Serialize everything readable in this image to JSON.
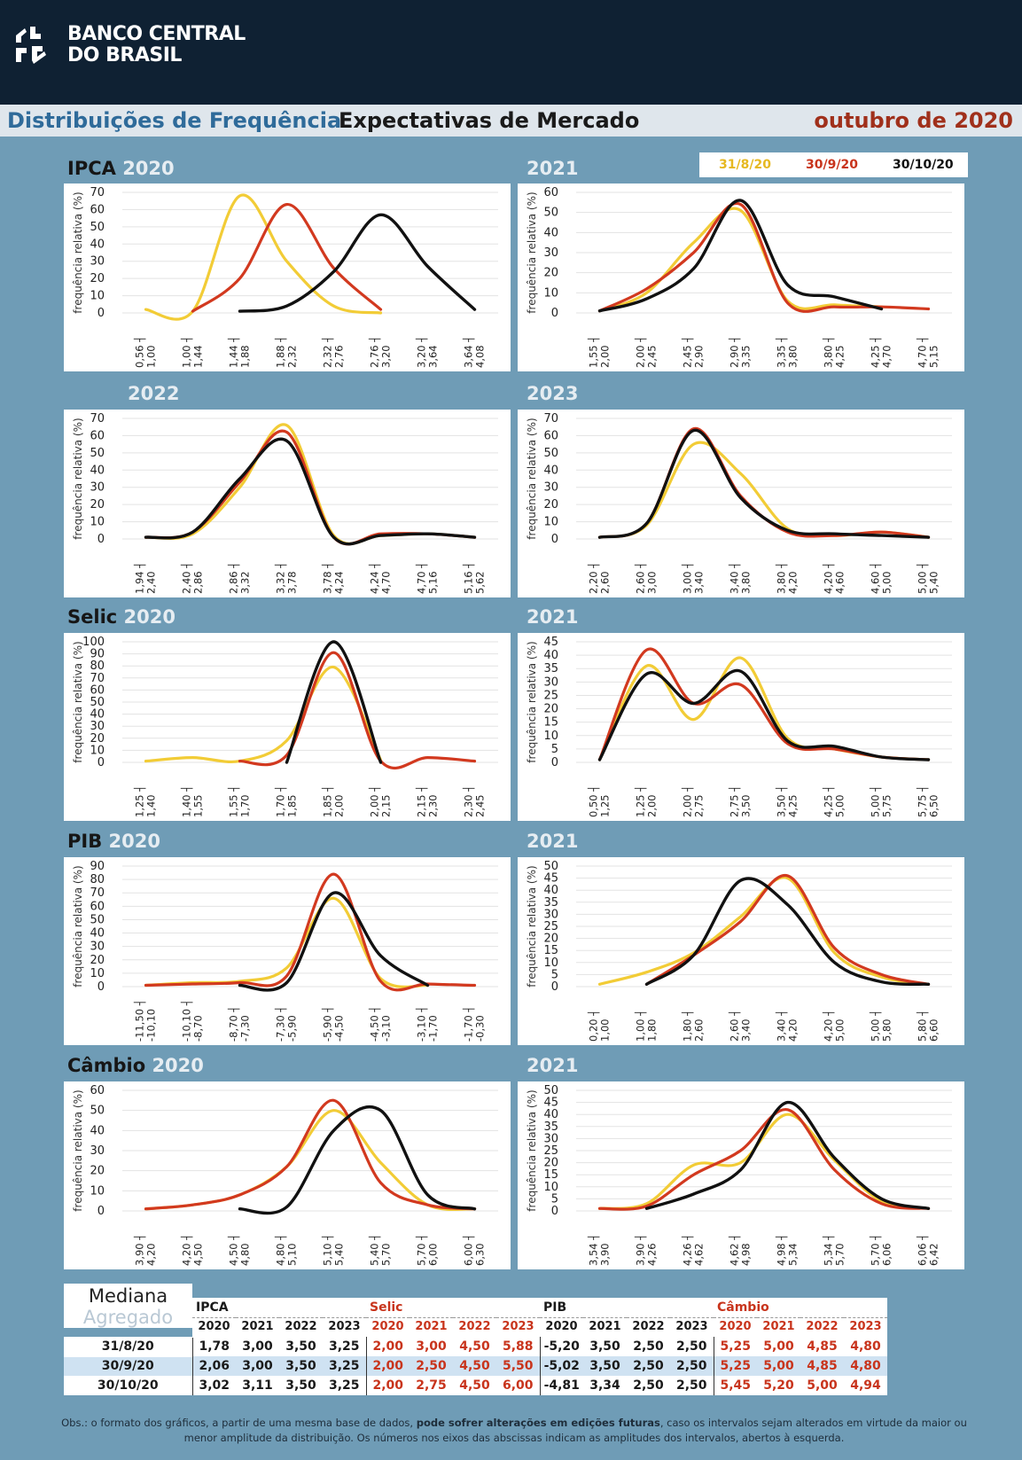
{
  "header": {
    "bank_line1": "BANCO CENTRAL",
    "bank_line2": "DO BRASIL",
    "logo_icon": "bcb-logo-icon"
  },
  "titlebar": {
    "part1": "Distribuições de Frequência",
    "part2": "Expectativas de Mercado",
    "date": "outubro de 2020"
  },
  "colors": {
    "s1": "#f2cc36",
    "s2": "#d2391f",
    "s3": "#111111",
    "red_text": "#c8341c",
    "grid": "#e3e3e3"
  },
  "legend": [
    {
      "label": "31/8/20",
      "color": "#e6b820"
    },
    {
      "label": "30/9/20",
      "color": "#c8341c"
    },
    {
      "label": "30/10/20",
      "color": "#111111"
    }
  ],
  "sections": [
    {
      "name": "IPCA",
      "left_year": "2020",
      "right_year": "2021"
    },
    {
      "name": "",
      "left_year": "2022",
      "right_year": "2023"
    },
    {
      "name": "Selic",
      "left_year": "2020",
      "right_year": "2021"
    },
    {
      "name": "PIB",
      "left_year": "2020",
      "right_year": "2021"
    },
    {
      "name": "Câmbio",
      "left_year": "2020",
      "right_year": "2021"
    }
  ],
  "ylabel": "frequência relativa (%)",
  "chart_data": [
    {
      "type": "line",
      "indicator": "IPCA",
      "year": "2020",
      "ylim": [
        0,
        70
      ],
      "yticks": [
        0,
        10,
        20,
        30,
        40,
        50,
        60,
        70
      ],
      "x": [
        "0,56 ┤ 1,00",
        "1,00 ┤ 1,44",
        "1,44 ┤ 1,88",
        "1,88 ┤ 2,32",
        "2,32 ┤ 2,76",
        "2,76 ┤ 3,20",
        "3,20 ┤ 3,64",
        "3,64 ┤ 4,08"
      ],
      "series": [
        {
          "name": "31/8/20",
          "values": [
            2,
            1,
            68,
            30,
            4,
            0,
            null,
            null
          ]
        },
        {
          "name": "30/9/20",
          "values": [
            null,
            1,
            20,
            63,
            26,
            2,
            null,
            null
          ]
        },
        {
          "name": "30/10/20",
          "values": [
            null,
            null,
            1,
            4,
            24,
            57,
            27,
            2
          ]
        }
      ]
    },
    {
      "type": "line",
      "indicator": "IPCA",
      "year": "2021",
      "ylim": [
        0,
        60
      ],
      "yticks": [
        0,
        10,
        20,
        30,
        40,
        50,
        60
      ],
      "x": [
        "1,55 ┤ 2,00",
        "2,00 ┤ 2,45",
        "2,45 ┤ 2,90",
        "2,90 ┤ 3,35",
        "3,35 ┤ 3,80",
        "3,80 ┤ 4,25",
        "4,25 ┤ 4,70",
        "4,70 ┤ 5,15"
      ],
      "series": [
        {
          "name": "31/8/20",
          "values": [
            1,
            10,
            35,
            51,
            6,
            4,
            3,
            null
          ]
        },
        {
          "name": "30/9/20",
          "values": [
            1,
            12,
            30,
            54,
            5,
            3,
            3,
            2
          ]
        },
        {
          "name": "30/10/20",
          "values": [
            1,
            7,
            22,
            56,
            14,
            8,
            2,
            null
          ]
        }
      ]
    },
    {
      "type": "line",
      "indicator": "IPCA",
      "year": "2022",
      "ylim": [
        0,
        70
      ],
      "yticks": [
        0,
        10,
        20,
        30,
        40,
        50,
        60,
        70
      ],
      "x": [
        "1,94 ┤ 2,40",
        "2,40 ┤ 2,86",
        "2,86 ┤ 3,32",
        "3,32 ┤ 3,78",
        "3,78 ┤ 4,24",
        "4,24 ┤ 4,70",
        "4,70 ┤ 5,16",
        "5,16 ┤ 5,62"
      ],
      "series": [
        {
          "name": "31/8/20",
          "values": [
            1,
            3,
            30,
            66,
            2,
            2,
            3,
            1
          ]
        },
        {
          "name": "30/9/20",
          "values": [
            1,
            4,
            33,
            62,
            1,
            3,
            3,
            1
          ]
        },
        {
          "name": "30/10/20",
          "values": [
            1,
            4,
            35,
            57,
            1,
            2,
            3,
            1
          ]
        }
      ]
    },
    {
      "type": "line",
      "indicator": "IPCA",
      "year": "2023",
      "ylim": [
        0,
        70
      ],
      "yticks": [
        0,
        10,
        20,
        30,
        40,
        50,
        60,
        70
      ],
      "x": [
        "2,20 ┤ 2,60",
        "2,60 ┤ 3,00",
        "3,00 ┤ 3,40",
        "3,40 ┤ 3,80",
        "3,80 ┤ 4,20",
        "4,20 ┤ 4,60",
        "4,60 ┤ 5,00",
        "5,00 ┤ 5,40"
      ],
      "series": [
        {
          "name": "31/8/20",
          "values": [
            1,
            8,
            55,
            38,
            6,
            2,
            4,
            1
          ]
        },
        {
          "name": "30/9/20",
          "values": [
            1,
            9,
            64,
            25,
            4,
            2,
            4,
            1
          ]
        },
        {
          "name": "30/10/20",
          "values": [
            1,
            9,
            63,
            24,
            5,
            3,
            2,
            1
          ]
        }
      ]
    },
    {
      "type": "line",
      "indicator": "Selic",
      "year": "2020",
      "ylim": [
        0,
        100
      ],
      "yticks": [
        0,
        10,
        20,
        30,
        40,
        50,
        60,
        70,
        80,
        90,
        100
      ],
      "x": [
        "1,25 ┤ 1,40",
        "1,40 ┤ 1,55",
        "1,55 ┤ 1,70",
        "1,70 ┤ 1,85",
        "1,85 ┤ 2,00",
        "2,00 ┤ 2,15",
        "2,15 ┤ 2,30",
        "2,30 ┤ 2,45"
      ],
      "series": [
        {
          "name": "31/8/20",
          "values": [
            1,
            4,
            1,
            18,
            79,
            2,
            null,
            null
          ]
        },
        {
          "name": "30/9/20",
          "values": [
            null,
            null,
            1,
            6,
            91,
            1,
            4,
            1
          ]
        },
        {
          "name": "30/10/20",
          "values": [
            null,
            null,
            null,
            0,
            100,
            0,
            null,
            null
          ]
        }
      ]
    },
    {
      "type": "line",
      "indicator": "Selic",
      "year": "2021",
      "ylim": [
        0,
        45
      ],
      "yticks": [
        0,
        5,
        10,
        15,
        20,
        25,
        30,
        35,
        40,
        45
      ],
      "x": [
        "0,50 ┤ 1,25",
        "1,25 ┤ 2,00",
        "2,00 ┤ 2,75",
        "2,75 ┤ 3,50",
        "3,50 ┤ 4,25",
        "4,25 ┤ 5,00",
        "5,00 ┤ 5,75",
        "5,75 ┤ 6,50"
      ],
      "series": [
        {
          "name": "31/8/20",
          "values": [
            1,
            36,
            16,
            39,
            9,
            5,
            2,
            1
          ]
        },
        {
          "name": "30/9/20",
          "values": [
            1,
            42,
            22,
            29,
            7,
            5,
            2,
            1
          ]
        },
        {
          "name": "30/10/20",
          "values": [
            1,
            33,
            22,
            34,
            8,
            6,
            2,
            1
          ]
        }
      ]
    },
    {
      "type": "line",
      "indicator": "PIB",
      "year": "2020",
      "ylim": [
        0,
        90
      ],
      "yticks": [
        0,
        10,
        20,
        30,
        40,
        50,
        60,
        70,
        80,
        90
      ],
      "x": [
        "-11,50 ┤ -10,10",
        "-10,10 ┤ -8,70",
        "-8,70 ┤ -7,30",
        "-7,30 ┤ -5,90",
        "-5,90 ┤ -4,50",
        "-4,50 ┤ -3,10",
        "-3,10 ┤ -1,70",
        "-1,70 ┤ -0,30"
      ],
      "series": [
        {
          "name": "31/8/20",
          "values": [
            1,
            3,
            4,
            14,
            66,
            6,
            1,
            null
          ]
        },
        {
          "name": "30/9/20",
          "values": [
            1,
            2,
            3,
            8,
            84,
            4,
            2,
            1
          ]
        },
        {
          "name": "30/10/20",
          "values": [
            null,
            null,
            1,
            3,
            70,
            23,
            1,
            null
          ]
        }
      ]
    },
    {
      "type": "line",
      "indicator": "PIB",
      "year": "2021",
      "ylim": [
        0,
        50
      ],
      "yticks": [
        0,
        5,
        10,
        15,
        20,
        25,
        30,
        35,
        40,
        45,
        50
      ],
      "x": [
        "0,20 ┤ 1,00",
        "1,00 ┤ 1,80",
        "1,80 ┤ 2,60",
        "2,60 ┤ 3,40",
        "3,40 ┤ 4,20",
        "4,20 ┤ 5,00",
        "5,00 ┤ 5,80",
        "5,80 ┤ 6,60"
      ],
      "series": [
        {
          "name": "31/8/20",
          "values": [
            1,
            6,
            14,
            29,
            45,
            14,
            4,
            1
          ]
        },
        {
          "name": "30/9/20",
          "values": [
            null,
            1,
            13,
            27,
            46,
            16,
            5,
            1
          ]
        },
        {
          "name": "30/10/20",
          "values": [
            null,
            1,
            13,
            44,
            34,
            10,
            2,
            1
          ]
        }
      ]
    },
    {
      "type": "line",
      "indicator": "Câmbio",
      "year": "2020",
      "ylim": [
        0,
        60
      ],
      "yticks": [
        0,
        10,
        20,
        30,
        40,
        50,
        60
      ],
      "x": [
        "3,90 ┤ 4,20",
        "4,20 ┤ 4,50",
        "4,50 ┤ 4,80",
        "4,80 ┤ 5,10",
        "5,10 ┤ 5,40",
        "5,40 ┤ 5,70",
        "5,70 ┤ 6,00",
        "6,00 ┤ 6,30"
      ],
      "series": [
        {
          "name": "31/8/20",
          "values": [
            1,
            3,
            8,
            22,
            50,
            24,
            3,
            1
          ]
        },
        {
          "name": "30/9/20",
          "values": [
            1,
            3,
            8,
            22,
            55,
            14,
            3,
            1
          ]
        },
        {
          "name": "30/10/20",
          "values": [
            null,
            null,
            1,
            2,
            40,
            50,
            8,
            1
          ]
        }
      ]
    },
    {
      "type": "line",
      "indicator": "Câmbio",
      "year": "2021",
      "ylim": [
        0,
        50
      ],
      "yticks": [
        0,
        5,
        10,
        15,
        20,
        25,
        30,
        35,
        40,
        45,
        50
      ],
      "x": [
        "3,54 ┤ 3,90",
        "3,90 ┤ 4,26",
        "4,26 ┤ 4,62",
        "4,62 ┤ 4,98",
        "4,98 ┤ 5,34",
        "5,34 ┤ 5,70",
        "5,70 ┤ 6,06",
        "6,06 ┤ 6,42"
      ],
      "series": [
        {
          "name": "31/8/20",
          "values": [
            1,
            3,
            19,
            20,
            40,
            21,
            4,
            1
          ]
        },
        {
          "name": "30/9/20",
          "values": [
            1,
            2,
            15,
            25,
            42,
            17,
            3,
            1
          ]
        },
        {
          "name": "30/10/20",
          "values": [
            null,
            1,
            7,
            17,
            45,
            22,
            5,
            1
          ]
        }
      ]
    }
  ],
  "median_table": {
    "title": "Mediana",
    "subtitle": "Agregado",
    "groups": [
      "IPCA",
      "Selic",
      "PIB",
      "Câmbio"
    ],
    "years": [
      "2020",
      "2021",
      "2022",
      "2023"
    ],
    "rows": [
      {
        "date": "31/8/20",
        "values": [
          "1,78",
          "3,00",
          "3,50",
          "3,25",
          "2,00",
          "3,00",
          "4,50",
          "5,88",
          "-5,20",
          "3,50",
          "2,50",
          "2,50",
          "5,25",
          "5,00",
          "4,85",
          "4,80"
        ]
      },
      {
        "date": "30/9/20",
        "values": [
          "2,06",
          "3,00",
          "3,50",
          "3,25",
          "2,00",
          "2,50",
          "4,50",
          "5,50",
          "-5,02",
          "3,50",
          "2,50",
          "2,50",
          "5,25",
          "5,00",
          "4,85",
          "4,80"
        ]
      },
      {
        "date": "30/10/20",
        "values": [
          "3,02",
          "3,11",
          "3,50",
          "3,25",
          "2,00",
          "2,75",
          "4,50",
          "6,00",
          "-4,81",
          "3,34",
          "2,50",
          "2,50",
          "5,45",
          "5,20",
          "5,00",
          "4,94"
        ]
      }
    ]
  },
  "note": {
    "part1": "Obs.: o formato dos gráficos, a partir de uma mesma base de dados,",
    "bold": "pode sofrer alterações em edições futuras",
    "part2": ", caso os intervalos sejam alterados em virtude da maior ou menor amplitude da distribuição. Os números nos eixos das abscissas indicam as amplitudes dos intervalos, abertos à esquerda."
  }
}
